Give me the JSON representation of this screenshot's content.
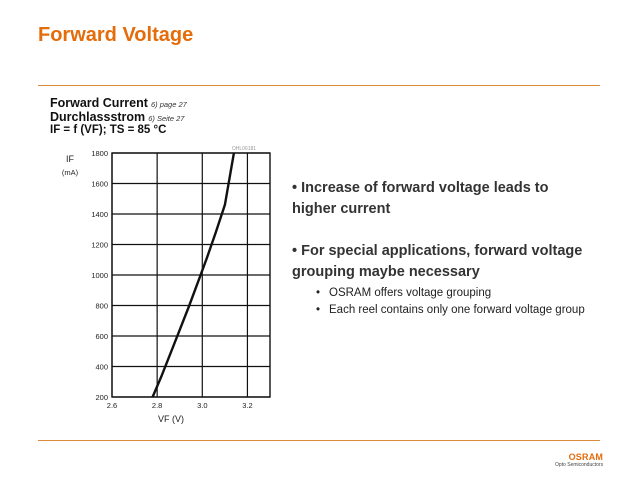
{
  "slide": {
    "title": "Forward Voltage",
    "colors": {
      "accent": "#e46c0a",
      "rule": "#d98a3a"
    }
  },
  "chart_header": {
    "line1": "Forward Current",
    "line1_note": "6) page 27",
    "line2": "Durchlassstrom",
    "line2_note": "6) Seite 27",
    "line3": "IF = f (VF); TS = 85 °C"
  },
  "chart_data": {
    "type": "line",
    "ylabel": "IF",
    "yunit": "(mA)",
    "xlabel": "VF (V)",
    "code": "OHL06181",
    "xlim": [
      2.6,
      3.3
    ],
    "ylim": [
      200,
      1800
    ],
    "xticks": [
      "2.6",
      "2.8",
      "3.0",
      "3.2"
    ],
    "xtick_values": [
      2.6,
      2.8,
      3.0,
      3.2
    ],
    "yticks": [
      "200",
      "400",
      "600",
      "800",
      "1000",
      "1200",
      "1400",
      "1600",
      "1800"
    ],
    "ytick_values": [
      200,
      400,
      600,
      800,
      1000,
      1200,
      1400,
      1600,
      1800
    ],
    "grid": true,
    "series": [
      {
        "x": [
          2.78,
          2.82,
          2.86,
          2.9,
          2.94,
          2.98,
          3.02,
          3.06,
          3.1,
          3.14
        ],
        "y": [
          200,
          340,
          490,
          640,
          790,
          950,
          1110,
          1280,
          1460,
          1800
        ]
      }
    ]
  },
  "bullets": [
    {
      "text": "• Increase of forward voltage leads to higher current"
    },
    {
      "text": "• For special applications, forward voltage grouping maybe necessary",
      "sub": [
        {
          "text": "OSRAM offers voltage grouping"
        },
        {
          "text": "Each reel contains only one forward voltage group"
        }
      ]
    }
  ],
  "logo": {
    "word": "OSRAM",
    "sub": "Opto Semiconductors"
  }
}
